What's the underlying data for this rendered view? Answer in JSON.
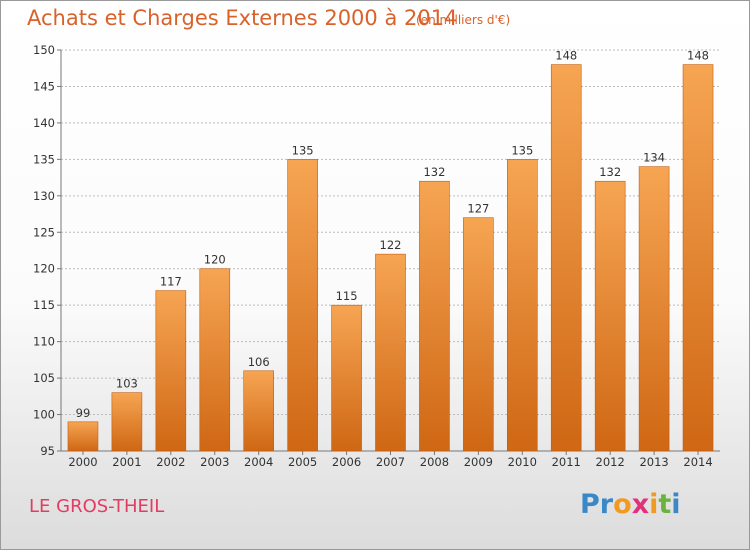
{
  "header": {
    "title": "Achats et Charges Externes 2000 à 2014",
    "subtitle": "(en milliers d'€)"
  },
  "footer": {
    "place": "LE GROS-THEIL",
    "logo_text": "Proxiti"
  },
  "colors": {
    "title": "#d9622b",
    "place": "#e43b62",
    "bar_top": "#f6a553",
    "bar_bottom": "#cf6714",
    "bar_edge": "#c25e12",
    "grid": "#bbbbbb",
    "logo": [
      "#3a88c8",
      "#6ab43e",
      "#f29a1f",
      "#e0327a"
    ]
  },
  "chart_data": {
    "type": "bar",
    "title": "Achats et Charges Externes 2000 à 2014",
    "subtitle": "(en milliers d'€)",
    "xlabel": "",
    "ylabel": "",
    "categories": [
      "2000",
      "2001",
      "2002",
      "2003",
      "2004",
      "2005",
      "2006",
      "2007",
      "2008",
      "2009",
      "2010",
      "2011",
      "2012",
      "2013",
      "2014"
    ],
    "values": [
      99,
      103,
      117,
      120,
      106,
      135,
      115,
      122,
      132,
      127,
      135,
      148,
      132,
      134,
      148
    ],
    "ylim": [
      95,
      150
    ],
    "yticks": [
      95,
      100,
      105,
      110,
      115,
      120,
      125,
      130,
      135,
      140,
      145,
      150
    ],
    "grid": true,
    "data_labels": true
  }
}
